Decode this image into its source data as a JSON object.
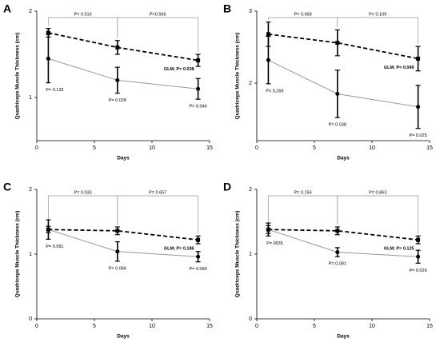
{
  "chart_data": [
    {
      "type": "line",
      "panel": "A",
      "xlabel": "Days",
      "ylabel": "Quadriceps Muscle Thickness (cm)",
      "x": [
        1,
        7,
        14
      ],
      "xlim": [
        0,
        15
      ],
      "xticks": [
        0,
        5,
        10,
        15
      ],
      "ylim": [
        0.5,
        2
      ],
      "yticks": [
        1,
        2
      ],
      "series": [
        {
          "color": "#000000",
          "dashed": true,
          "marker": "square",
          "values": [
            1.75,
            1.58,
            1.43
          ],
          "errors": [
            0.05,
            0.08,
            0.07
          ]
        },
        {
          "color": "#999999",
          "dashed": false,
          "marker": "circle",
          "values": [
            1.45,
            1.2,
            1.1
          ],
          "errors": [
            0.28,
            0.15,
            0.12
          ],
          "point_labels": [
            "P= 0.133",
            "P= 0.028",
            "P= 0.046"
          ]
        }
      ],
      "comparisons": [
        {
          "between": [
            1,
            7
          ],
          "label": "P= 0.516"
        },
        {
          "between": [
            7,
            14
          ],
          "label": "P=0.566"
        }
      ],
      "glm_label": "GLM; P= 0.038"
    },
    {
      "type": "line",
      "panel": "B",
      "xlabel": "Days",
      "ylabel": "Quadriceps Muscle Thickness (cm)",
      "x": [
        1,
        7,
        14
      ],
      "xlim": [
        0,
        15
      ],
      "xticks": [
        0,
        5,
        10,
        15
      ],
      "ylim": [
        1.2,
        3
      ],
      "yticks": [
        2,
        3
      ],
      "series": [
        {
          "color": "#000000",
          "dashed": true,
          "marker": "square",
          "values": [
            2.68,
            2.56,
            2.34
          ],
          "errors": [
            0.17,
            0.18,
            0.17
          ]
        },
        {
          "color": "#999999",
          "dashed": false,
          "marker": "circle",
          "values": [
            2.32,
            1.85,
            1.67
          ],
          "errors": [
            0.33,
            0.33,
            0.3
          ],
          "point_labels": [
            "P= 0.269",
            "P= 0.038",
            "P= 0.025"
          ]
        }
      ],
      "comparisons": [
        {
          "between": [
            1,
            7
          ],
          "label": "P= 0.068"
        },
        {
          "between": [
            7,
            14
          ],
          "label": "P= 0.109"
        }
      ],
      "glm_label": "GLM; P= 0.049"
    },
    {
      "type": "line",
      "panel": "C",
      "xlabel": "Days",
      "ylabel": "Quadriceps Muscle Thickness (cm)",
      "x": [
        1,
        7,
        14
      ],
      "xlim": [
        0,
        15
      ],
      "xticks": [
        0,
        5,
        10,
        15
      ],
      "ylim": [
        0,
        2
      ],
      "yticks": [
        0,
        1,
        2
      ],
      "series": [
        {
          "color": "#000000",
          "dashed": true,
          "marker": "square",
          "values": [
            1.38,
            1.36,
            1.22
          ],
          "errors": [
            0.05,
            0.06,
            0.06
          ]
        },
        {
          "color": "#999999",
          "dashed": false,
          "marker": "circle",
          "values": [
            1.38,
            1.04,
            0.96
          ],
          "errors": [
            0.15,
            0.15,
            0.08
          ],
          "point_labels": [
            "P= 0.991",
            "P= 0.066",
            "P= 0.090"
          ]
        }
      ],
      "comparisons": [
        {
          "between": [
            1,
            7
          ],
          "label": "P= 0.033"
        },
        {
          "between": [
            7,
            14
          ],
          "label": "P= 0.657"
        }
      ],
      "glm_label": "GLM; P= 0.186"
    },
    {
      "type": "line",
      "panel": "D",
      "xlabel": "Days",
      "ylabel": "Quadriceps Muscle Thickness (cm)",
      "x": [
        1,
        7,
        14
      ],
      "xlim": [
        0,
        15
      ],
      "xticks": [
        0,
        5,
        10,
        15
      ],
      "ylim": [
        0,
        2
      ],
      "yticks": [
        0,
        1,
        2
      ],
      "series": [
        {
          "color": "#000000",
          "dashed": true,
          "marker": "square",
          "values": [
            1.38,
            1.36,
            1.22
          ],
          "errors": [
            0.06,
            0.06,
            0.06
          ]
        },
        {
          "color": "#999999",
          "dashed": false,
          "marker": "circle",
          "values": [
            1.38,
            1.03,
            0.96
          ],
          "errors": [
            0.1,
            0.07,
            0.1
          ],
          "point_labels": [
            "P= 0635",
            "P= 0.081",
            "P= 0.026"
          ]
        }
      ],
      "comparisons": [
        {
          "between": [
            1,
            7
          ],
          "label": "P= 0.156"
        },
        {
          "between": [
            7,
            14
          ],
          "label": "P= 0.863"
        }
      ],
      "glm_label": "GLM; P= 0.125"
    }
  ]
}
